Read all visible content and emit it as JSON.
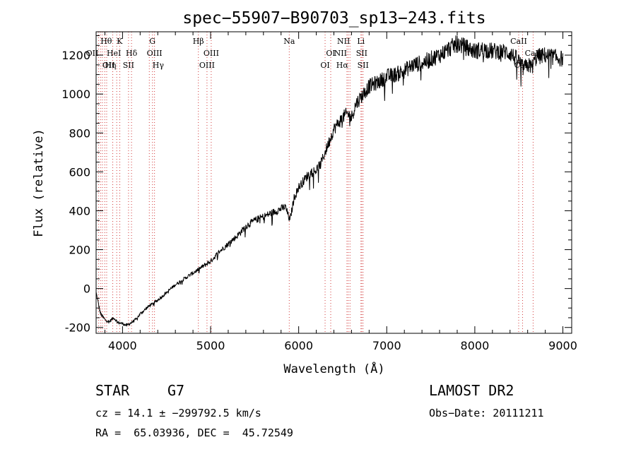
{
  "chart_data": {
    "type": "line",
    "title": "spec−55907−B90703_sp13−243.fits",
    "xlabel": "Wavelength (Å)",
    "ylabel": "Flux (relative)",
    "xlim": [
      3700,
      9100
    ],
    "ylim": [
      -230,
      1320
    ],
    "x_ticks": [
      4000,
      5000,
      6000,
      7000,
      8000,
      9000
    ],
    "y_ticks": [
      -200,
      0,
      200,
      400,
      600,
      800,
      1000,
      1200
    ],
    "grid": false,
    "series": [
      {
        "x": [
          3700,
          3750,
          3800,
          3850,
          3900,
          3950,
          4000,
          4050,
          4100,
          4150,
          4200,
          4300,
          4400,
          4500,
          4600,
          4700,
          4800,
          4900,
          5000,
          5100,
          5200,
          5300,
          5400,
          5500,
          5600,
          5700,
          5800,
          5850,
          5900,
          5950,
          6000,
          6050,
          6100,
          6150,
          6200,
          6250,
          6300,
          6350,
          6400,
          6450,
          6500,
          6550,
          6600,
          6650,
          6700,
          6750,
          6800,
          6900,
          7000,
          7100,
          7200,
          7300,
          7400,
          7500,
          7600,
          7700,
          7800,
          7900,
          8000,
          8100,
          8200,
          8300,
          8400,
          8500,
          8550,
          8600,
          8650,
          8700,
          8800,
          8900,
          9000
        ],
        "y": [
          -20,
          -130,
          -160,
          -170,
          -150,
          -175,
          -180,
          -190,
          -175,
          -160,
          -130,
          -90,
          -60,
          -20,
          20,
          50,
          80,
          110,
          140,
          190,
          230,
          270,
          320,
          350,
          370,
          390,
          410,
          420,
          350,
          470,
          520,
          550,
          580,
          600,
          610,
          640,
          700,
          760,
          820,
          850,
          880,
          900,
          880,
          950,
          980,
          1010,
          1040,
          1060,
          1090,
          1100,
          1120,
          1150,
          1160,
          1180,
          1200,
          1230,
          1260,
          1240,
          1220,
          1230,
          1220,
          1220,
          1210,
          1170,
          1130,
          1150,
          1140,
          1190,
          1200,
          1190,
          1180
        ]
      }
    ],
    "lines": [
      {
        "wl": 3727,
        "label": "OII",
        "row": 1,
        "anchor": "end"
      },
      {
        "wl": 3750,
        "label": "Hθ",
        "row": 0,
        "anchor": "start"
      },
      {
        "wl": 3771,
        "label": "OII",
        "row": 2,
        "anchor": "start"
      },
      {
        "wl": 3798,
        "label": "Hη",
        "row": 2,
        "anchor": "start"
      },
      {
        "wl": 3820,
        "label": "HeI",
        "row": 1,
        "anchor": "start"
      },
      {
        "wl": 3889,
        "label": "",
        "row": 1,
        "anchor": "start"
      },
      {
        "wl": 3934,
        "label": "K",
        "row": 0,
        "anchor": "start"
      },
      {
        "wl": 3969,
        "label": "",
        "row": 0,
        "anchor": "start"
      },
      {
        "wl": 4068,
        "label": "SII",
        "row": 2,
        "anchor": "middle"
      },
      {
        "wl": 4102,
        "label": "Hδ",
        "row": 1,
        "anchor": "middle"
      },
      {
        "wl": 4304,
        "label": "G",
        "row": 0,
        "anchor": "start"
      },
      {
        "wl": 4340,
        "label": "Hγ",
        "row": 2,
        "anchor": "start"
      },
      {
        "wl": 4363,
        "label": "OIII",
        "row": 1,
        "anchor": "middle"
      },
      {
        "wl": 4861,
        "label": "Hβ",
        "row": 0,
        "anchor": "middle"
      },
      {
        "wl": 4959,
        "label": "OIII",
        "row": 2,
        "anchor": "middle"
      },
      {
        "wl": 5007,
        "label": "OIII",
        "row": 1,
        "anchor": "middle"
      },
      {
        "wl": 5893,
        "label": "Na",
        "row": 0,
        "anchor": "middle"
      },
      {
        "wl": 6300,
        "label": "OI",
        "row": 2,
        "anchor": "middle"
      },
      {
        "wl": 6364,
        "label": "OI",
        "row": 1,
        "anchor": "middle"
      },
      {
        "wl": 6548,
        "label": "NII",
        "row": 1,
        "anchor": "end"
      },
      {
        "wl": 6563,
        "label": "Hα",
        "row": 2,
        "anchor": "end"
      },
      {
        "wl": 6583,
        "label": "NII",
        "row": 0,
        "anchor": "end"
      },
      {
        "wl": 6707,
        "label": "Li",
        "row": 0,
        "anchor": "middle"
      },
      {
        "wl": 6716,
        "label": "SII",
        "row": 1,
        "anchor": "middle"
      },
      {
        "wl": 6731,
        "label": "SII",
        "row": 2,
        "anchor": "middle"
      },
      {
        "wl": 8498,
        "label": "CaII",
        "row": 0,
        "anchor": "middle"
      },
      {
        "wl": 8542,
        "label": "CaII",
        "row": 2,
        "anchor": "middle"
      },
      {
        "wl": 8662,
        "label": "CaII",
        "row": 1,
        "anchor": "middle"
      }
    ]
  },
  "info": {
    "object_class": "STAR",
    "subclass": "G7",
    "survey": "LAMOST DR2",
    "redshift": "cz = 14.1 ± −299792.5 km/s",
    "obs_date": "Obs−Date: 20111211",
    "coords": "RA =  65.03936, DEC =  45.72549"
  }
}
